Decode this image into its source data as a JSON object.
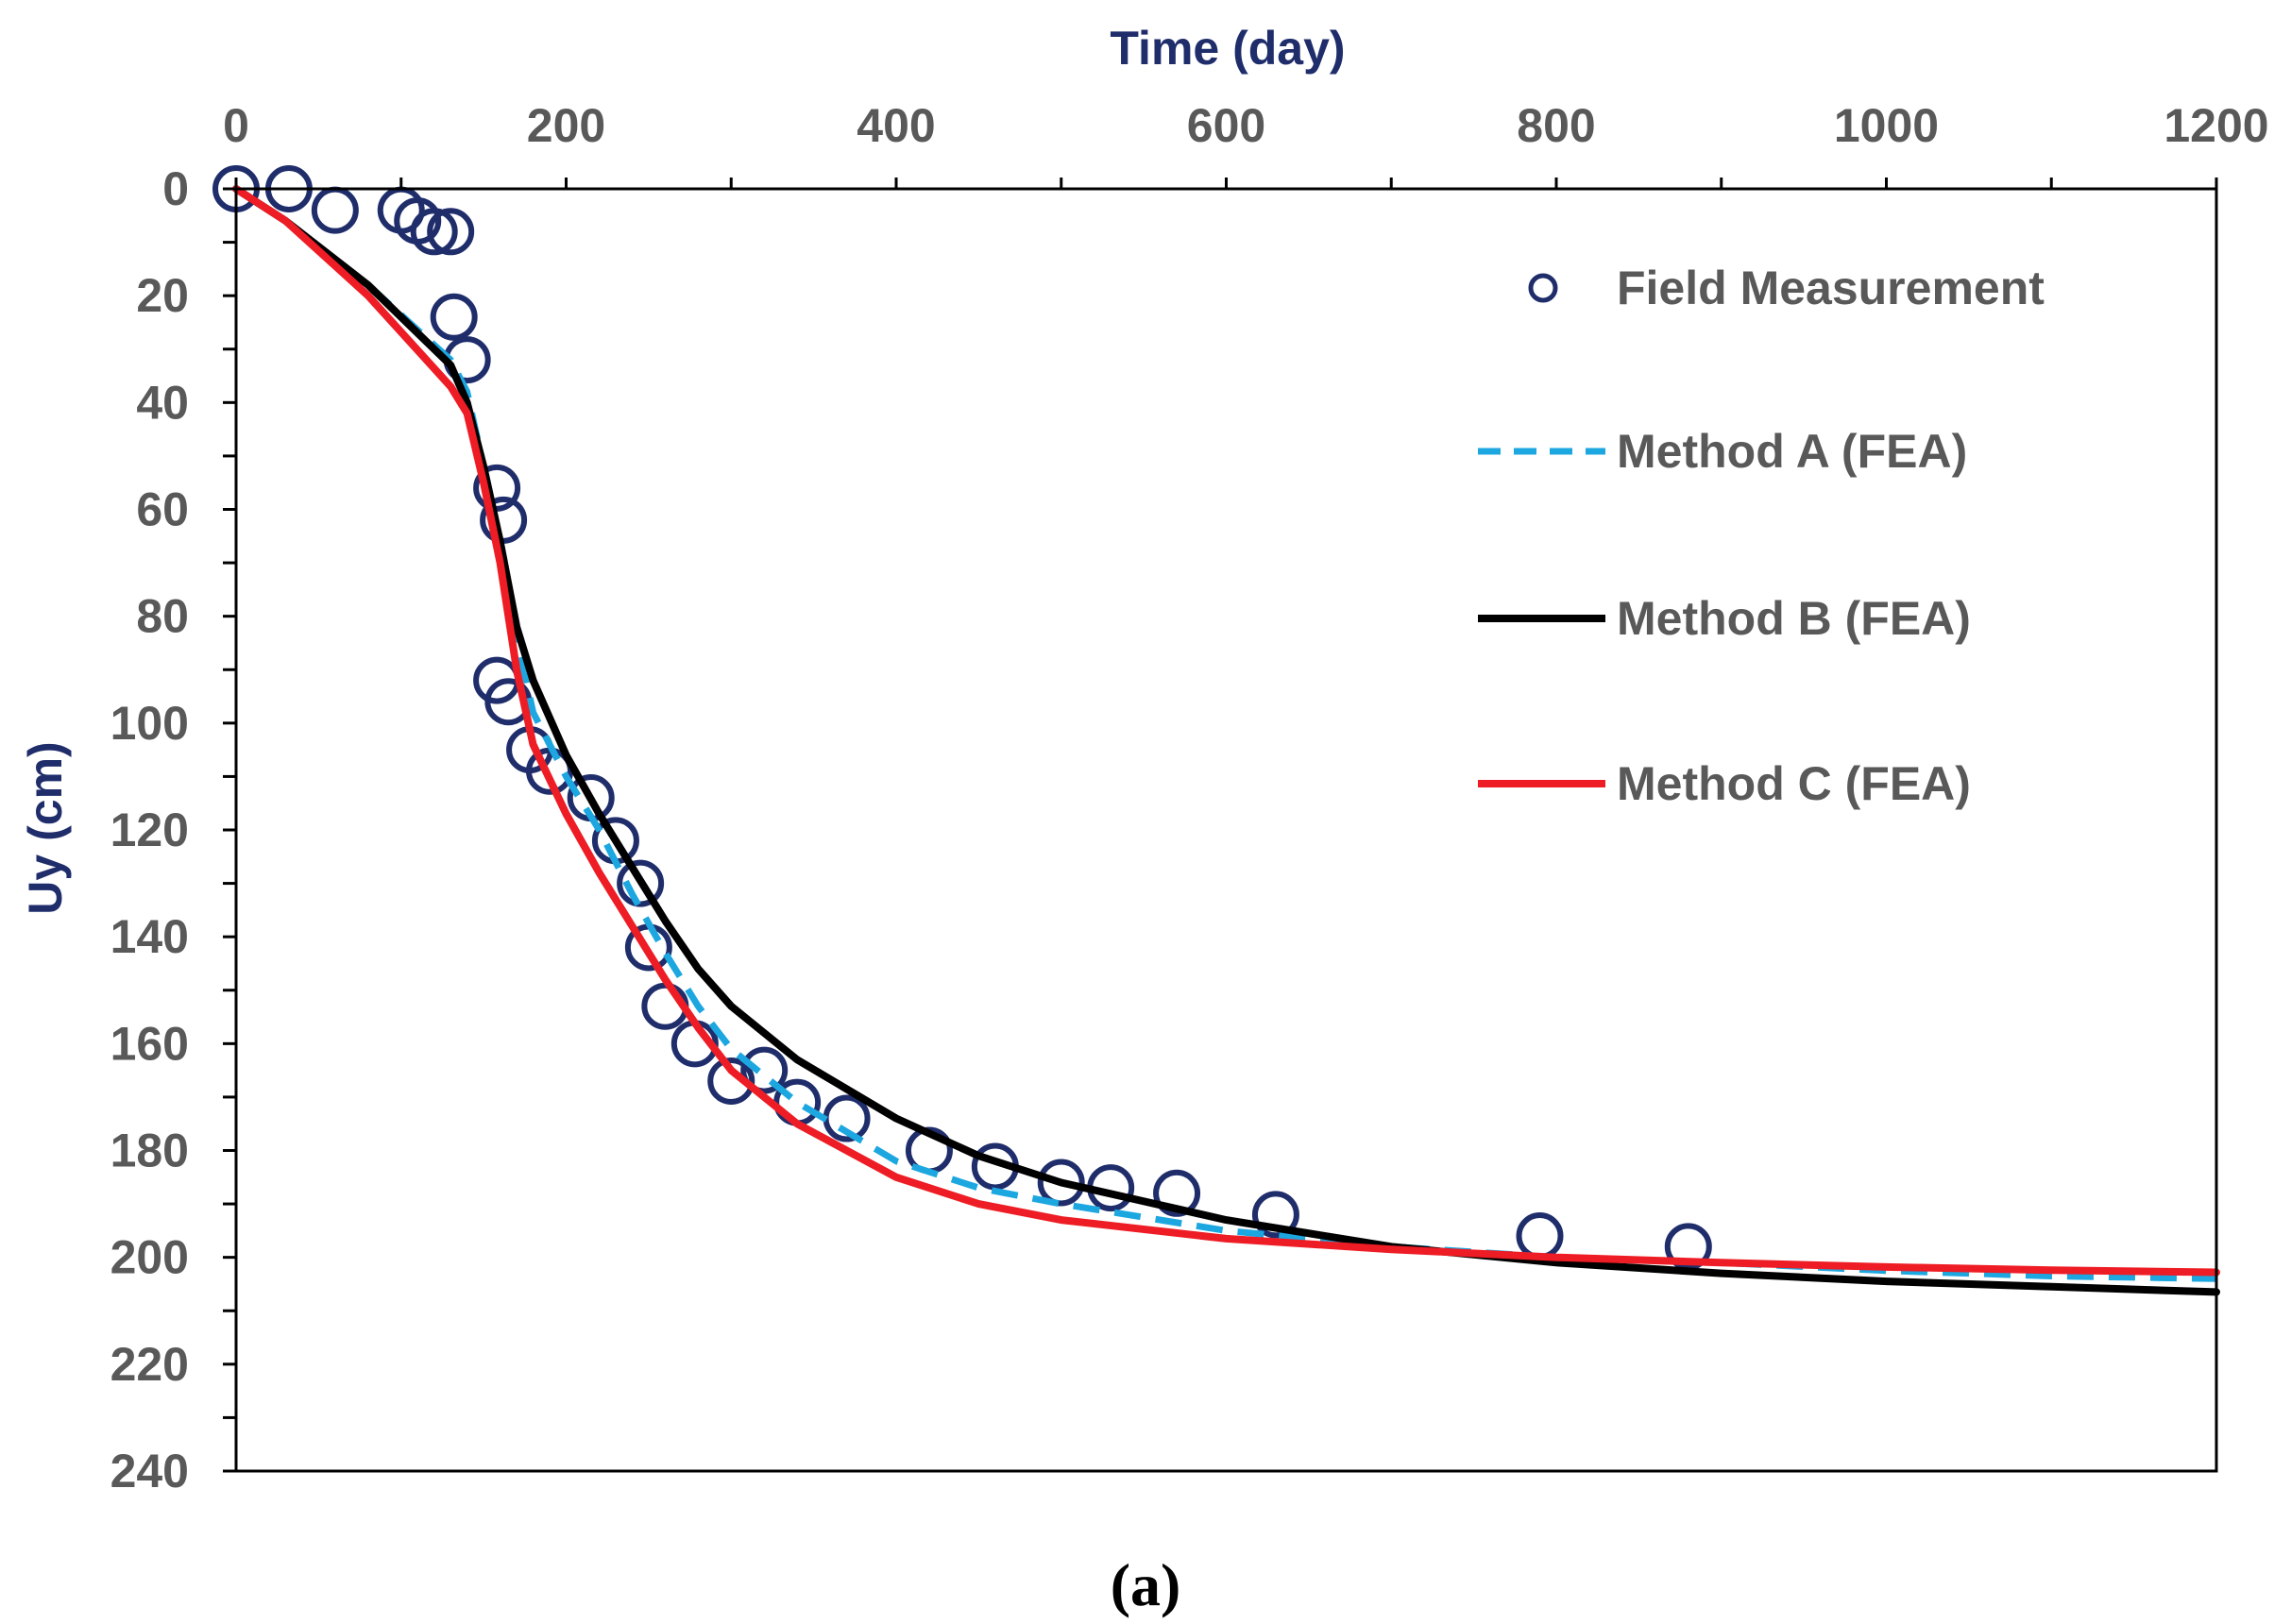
{
  "colors": {
    "axis_title": "#1f2d6b",
    "tick_text": "#595959",
    "marker": "#1f2d6b",
    "method_a": "#1ca7e0",
    "method_b": "#000000",
    "method_c": "#ee1c24",
    "frame": "#000000"
  },
  "caption": "(a)",
  "chart_data": {
    "type": "scatter",
    "title": "",
    "xlabel": "Time (day)",
    "ylabel": "Uy (cm)",
    "x_axis_position": "top",
    "y_axis_inverted": true,
    "xlim": [
      0,
      1200
    ],
    "ylim": [
      0,
      240
    ],
    "x_ticks": [
      0,
      200,
      400,
      600,
      800,
      1000,
      1200
    ],
    "x_tick_labels": [
      "0",
      "200",
      "400",
      "600",
      "800",
      "1000",
      "1200"
    ],
    "y_ticks": [
      0,
      20,
      40,
      60,
      80,
      100,
      120,
      140,
      160,
      180,
      200,
      220,
      240
    ],
    "y_tick_labels": [
      "0",
      "20",
      "40",
      "60",
      "80",
      "100",
      "120",
      "140",
      "160",
      "180",
      "200",
      "220",
      "240"
    ],
    "grid": false,
    "legend_position": "top-right",
    "series": [
      {
        "name": "Field Measurement",
        "kind": "markers",
        "points": [
          [
            0,
            0
          ],
          [
            32,
            0
          ],
          [
            60,
            4
          ],
          [
            100,
            4
          ],
          [
            110,
            6
          ],
          [
            120,
            8
          ],
          [
            130,
            8
          ],
          [
            132,
            24
          ],
          [
            140,
            32
          ],
          [
            158,
            56
          ],
          [
            162,
            62
          ],
          [
            158,
            92
          ],
          [
            165,
            96
          ],
          [
            178,
            105
          ],
          [
            190,
            109
          ],
          [
            215,
            114
          ],
          [
            230,
            122
          ],
          [
            245,
            130
          ],
          [
            250,
            142
          ],
          [
            260,
            153
          ],
          [
            278,
            160
          ],
          [
            300,
            167
          ],
          [
            320,
            165
          ],
          [
            340,
            171
          ],
          [
            370,
            174
          ],
          [
            420,
            180
          ],
          [
            460,
            183
          ],
          [
            500,
            186
          ],
          [
            530,
            187
          ],
          [
            570,
            188
          ],
          [
            630,
            192
          ],
          [
            790,
            196
          ],
          [
            880,
            198
          ]
        ]
      },
      {
        "name": "Method A (FEA)",
        "kind": "line-dashed",
        "points": [
          [
            0,
            0
          ],
          [
            30,
            6
          ],
          [
            80,
            18
          ],
          [
            130,
            32
          ],
          [
            140,
            38
          ],
          [
            150,
            52
          ],
          [
            160,
            68
          ],
          [
            170,
            84
          ],
          [
            180,
            98
          ],
          [
            200,
            110
          ],
          [
            220,
            120
          ],
          [
            240,
            132
          ],
          [
            260,
            143
          ],
          [
            280,
            153
          ],
          [
            300,
            161
          ],
          [
            340,
            171
          ],
          [
            400,
            182
          ],
          [
            450,
            187
          ],
          [
            500,
            190
          ],
          [
            600,
            195
          ],
          [
            700,
            198
          ],
          [
            800,
            200
          ],
          [
            900,
            201
          ],
          [
            1000,
            202.5
          ],
          [
            1100,
            203.5
          ],
          [
            1200,
            204
          ]
        ]
      },
      {
        "name": "Method B (FEA)",
        "kind": "line",
        "points": [
          [
            0,
            0
          ],
          [
            30,
            6
          ],
          [
            80,
            18
          ],
          [
            130,
            33
          ],
          [
            140,
            40
          ],
          [
            150,
            52
          ],
          [
            160,
            66
          ],
          [
            170,
            82
          ],
          [
            180,
            92
          ],
          [
            200,
            106
          ],
          [
            220,
            117
          ],
          [
            240,
            127
          ],
          [
            260,
            137
          ],
          [
            280,
            146
          ],
          [
            300,
            153
          ],
          [
            340,
            163
          ],
          [
            400,
            174
          ],
          [
            450,
            181
          ],
          [
            500,
            186
          ],
          [
            600,
            193
          ],
          [
            700,
            198
          ],
          [
            800,
            201
          ],
          [
            900,
            203
          ],
          [
            1000,
            204.5
          ],
          [
            1100,
            205.5
          ],
          [
            1200,
            206.5
          ]
        ]
      },
      {
        "name": "Method C (FEA)",
        "kind": "line",
        "points": [
          [
            0,
            0
          ],
          [
            30,
            6
          ],
          [
            80,
            20
          ],
          [
            130,
            37
          ],
          [
            140,
            42
          ],
          [
            150,
            55
          ],
          [
            160,
            70
          ],
          [
            170,
            90
          ],
          [
            180,
            104
          ],
          [
            200,
            117
          ],
          [
            220,
            128
          ],
          [
            240,
            138
          ],
          [
            260,
            148
          ],
          [
            280,
            157
          ],
          [
            300,
            165
          ],
          [
            340,
            175
          ],
          [
            400,
            185
          ],
          [
            450,
            190
          ],
          [
            500,
            193
          ],
          [
            600,
            196.5
          ],
          [
            700,
            198.5
          ],
          [
            800,
            200
          ],
          [
            900,
            201
          ],
          [
            1000,
            201.8
          ],
          [
            1100,
            202.4
          ],
          [
            1200,
            202.8
          ]
        ]
      }
    ]
  }
}
